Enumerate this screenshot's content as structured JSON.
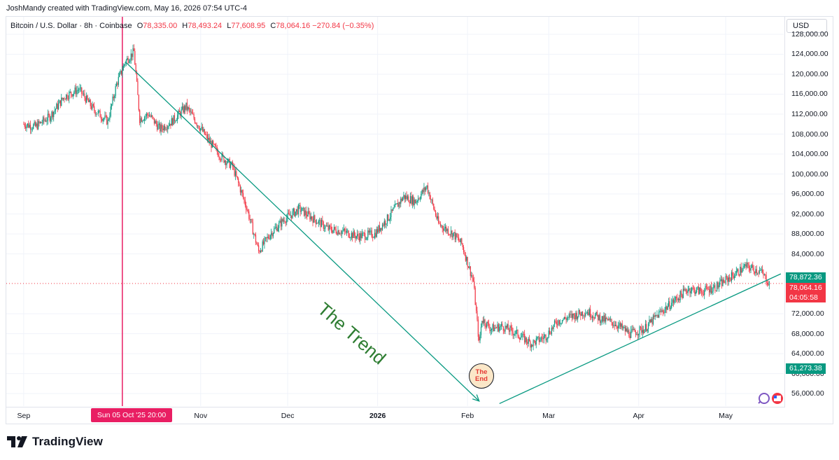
{
  "header": {
    "credit": "JoshMandy created with TradingView.com, May 16, 2026 07:54 UTC-4",
    "symbol": "Bitcoin / U.S. Dollar · 8h · Coinbase",
    "ohlc": {
      "o_label": "O",
      "o": "78,335.00",
      "h_label": "H",
      "h": "78,493.24",
      "l_label": "L",
      "l": "77,608.95",
      "c_label": "C",
      "c": "78,064.16",
      "change": "−270.84 (−0.35%)"
    }
  },
  "currency_button": "USD",
  "crosshair_label": "Sun 05 Oct '25   20:00",
  "price_tags": {
    "green": "78,872.36",
    "red_price": "78,064.16",
    "red_timer": "04:05:58",
    "low": "61,273.38"
  },
  "annotations": {
    "trend": "The Trend",
    "end_line1": "The",
    "end_line2": "End"
  },
  "brand": "TradingView",
  "colors": {
    "up": "#089981",
    "down": "#f23645",
    "crosshair": "#e91e63",
    "trendline": "#089981",
    "trend_text": "#2e7d32"
  },
  "chart_data": {
    "type": "candlestick",
    "title": "Bitcoin / U.S. Dollar · 8h · Coinbase",
    "y_axis": {
      "ticks": [
        "128,000.00",
        "124,000.00",
        "120,000.00",
        "116,000.00",
        "112,000.00",
        "108,000.00",
        "104,000.00",
        "100,000.00",
        "96,000.00",
        "92,000.00",
        "88,000.00",
        "84,000.00",
        "72,000.00",
        "68,000.00",
        "64,000.00",
        "60,000.00",
        "56,000.00"
      ],
      "ylim": [
        53500,
        131500
      ]
    },
    "x_axis": {
      "ticks": [
        "Sep",
        "Nov",
        "Dec",
        "2026",
        "Feb",
        "Mar",
        "Apr",
        "May"
      ],
      "bold_ticks": [
        "2026"
      ]
    },
    "grid": true,
    "series": [
      {
        "x": [
          "2025-09-01",
          "2025-09-05",
          "2025-09-10",
          "2025-09-15",
          "2025-09-20",
          "2025-09-25",
          "2025-09-30",
          "2025-10-03",
          "2025-10-06",
          "2025-10-09",
          "2025-10-11",
          "2025-10-14",
          "2025-10-18",
          "2025-10-22",
          "2025-10-27",
          "2025-10-31",
          "2025-11-04",
          "2025-11-08",
          "2025-11-12",
          "2025-11-17",
          "2025-11-21",
          "2025-11-25",
          "2025-11-30",
          "2025-12-05",
          "2025-12-10",
          "2025-12-15",
          "2025-12-20",
          "2025-12-25",
          "2025-12-31",
          "2026-01-05",
          "2026-01-10",
          "2026-01-14",
          "2026-01-18",
          "2026-01-22",
          "2026-01-27",
          "2026-01-30",
          "2026-02-03",
          "2026-02-05",
          "2026-02-06",
          "2026-02-09",
          "2026-02-13",
          "2026-02-18",
          "2026-02-23",
          "2026-02-28",
          "2026-03-04",
          "2026-03-09",
          "2026-03-14",
          "2026-03-19",
          "2026-03-24",
          "2026-03-29",
          "2026-04-03",
          "2026-04-08",
          "2026-04-13",
          "2026-04-18",
          "2026-04-23",
          "2026-04-28",
          "2026-05-03",
          "2026-05-08",
          "2026-05-13",
          "2026-05-16"
        ],
        "close": [
          110000,
          109500,
          111500,
          115500,
          117000,
          113000,
          110500,
          118000,
          122500,
          124500,
          111000,
          112000,
          109000,
          110500,
          113500,
          110000,
          106500,
          103500,
          101500,
          93000,
          84500,
          88000,
          91000,
          93000,
          91000,
          89000,
          88500,
          87500,
          88000,
          91500,
          95500,
          94500,
          97500,
          90000,
          88000,
          86000,
          78500,
          66000,
          71000,
          69000,
          69500,
          68000,
          66000,
          67500,
          70500,
          71500,
          72500,
          71000,
          70000,
          68000,
          69000,
          72000,
          74500,
          77000,
          76500,
          77500,
          79500,
          81500,
          80500,
          78064
        ]
      }
    ],
    "trendlines": [
      {
        "name": "The Trend",
        "from": {
          "x": "2025-10-06",
          "y": 122500
        },
        "to": {
          "x": "2026-02-05",
          "y": 54500
        }
      },
      {
        "from": {
          "x": "2026-02-12",
          "y": 54000
        },
        "to": {
          "x": "2026-05-20",
          "y": 80000
        }
      }
    ],
    "price_lines": [
      {
        "y": 78064.16,
        "style": "dotted"
      }
    ],
    "crosshair_x": "2025-10-05"
  }
}
